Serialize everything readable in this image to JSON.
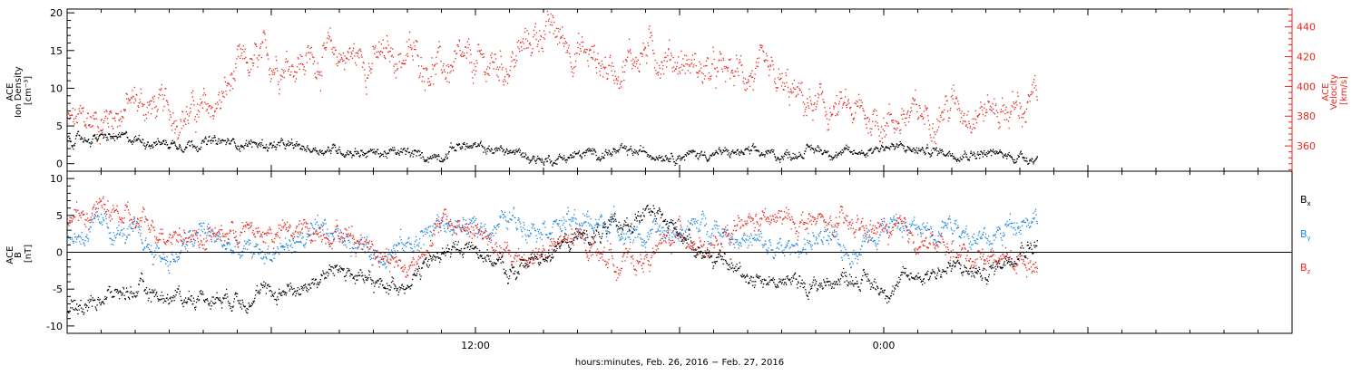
{
  "chart_data": [
    {
      "type": "scatter",
      "panel": "top",
      "left_axis": {
        "label_lines": [
          "ACE",
          "Ion Density",
          "[cm⁻³]"
        ],
        "ylim": [
          -1,
          20.5
        ],
        "ticks": [
          0,
          5,
          10,
          15,
          20
        ],
        "color": "#000000"
      },
      "right_axis": {
        "label_lines": [
          "ACE",
          "Velocity",
          "[km/s]"
        ],
        "ylim": [
          343,
          452
        ],
        "ticks": [
          360,
          380,
          400,
          420,
          440
        ],
        "color": "#e8251c"
      },
      "x_hours_range": [
        0,
        36
      ],
      "data_end_hour": 28.5,
      "series": [
        {
          "name": "",
          "axis": "left",
          "color": "#000000",
          "points": [
            [
              0,
              3.1
            ],
            [
              1,
              3.5
            ],
            [
              2,
              3.3
            ],
            [
              3,
              2.7
            ],
            [
              4,
              2.9
            ],
            [
              5,
              2.8
            ],
            [
              6,
              2.5
            ],
            [
              7,
              2.1
            ],
            [
              8,
              1.9
            ],
            [
              9,
              1.5
            ],
            [
              10,
              1.4
            ],
            [
              10.5,
              1.0
            ],
            [
              11,
              1.2
            ],
            [
              11.5,
              2.6
            ],
            [
              12,
              2.1
            ],
            [
              13,
              1.7
            ],
            [
              14,
              0.5
            ],
            [
              15,
              1.2
            ],
            [
              16,
              1.6
            ],
            [
              17,
              1.5
            ],
            [
              18,
              1.2
            ],
            [
              19,
              1.4
            ],
            [
              20,
              1.5
            ],
            [
              21,
              1.1
            ],
            [
              22,
              2.0
            ],
            [
              23,
              1.3
            ],
            [
              24,
              2.4
            ],
            [
              25,
              1.8
            ],
            [
              26,
              1.6
            ],
            [
              27,
              1.4
            ],
            [
              28,
              1.0
            ],
            [
              28.5,
              0.9
            ]
          ]
        },
        {
          "name": "",
          "axis": "right",
          "color": "#e8251c",
          "points": [
            [
              0,
              375
            ],
            [
              1,
              378
            ],
            [
              2,
              390
            ],
            [
              3,
              383
            ],
            [
              4,
              382
            ],
            [
              4.5,
              390
            ],
            [
              5,
              410
            ],
            [
              6,
              418
            ],
            [
              7,
              418
            ],
            [
              8,
              422
            ],
            [
              9,
              418
            ],
            [
              10,
              422
            ],
            [
              11,
              412
            ],
            [
              12,
              413
            ],
            [
              13,
              416
            ],
            [
              14,
              440
            ],
            [
              15,
              425
            ],
            [
              16,
              412
            ],
            [
              17,
              425
            ],
            [
              18,
              418
            ],
            [
              19,
              408
            ],
            [
              20,
              410
            ],
            [
              21,
              398
            ],
            [
              22,
              385
            ],
            [
              23,
              382
            ],
            [
              24,
              378
            ],
            [
              25,
              380
            ],
            [
              26,
              388
            ],
            [
              27,
              386
            ],
            [
              28,
              385
            ],
            [
              28.5,
              392
            ]
          ]
        }
      ]
    },
    {
      "type": "scatter",
      "panel": "bottom",
      "left_axis": {
        "label_lines": [
          "ACE",
          "B",
          "[nT]"
        ],
        "ylim": [
          -11,
          11
        ],
        "ticks": [
          -10,
          -5,
          0,
          5,
          10
        ],
        "color": "#000000"
      },
      "zero_line": true,
      "x_hours_range": [
        0,
        36
      ],
      "data_end_hour": 28.5,
      "series": [
        {
          "name": "B",
          "subscript": "x",
          "color": "#000000",
          "points": [
            [
              0,
              -8
            ],
            [
              1,
              -6
            ],
            [
              2,
              -5
            ],
            [
              3,
              -6
            ],
            [
              4,
              -6
            ],
            [
              5,
              -6
            ],
            [
              6,
              -5.5
            ],
            [
              7,
              -4.5
            ],
            [
              8,
              -2
            ],
            [
              9,
              -4.5
            ],
            [
              10,
              -4
            ],
            [
              11,
              0
            ],
            [
              12,
              1
            ],
            [
              13,
              -3
            ],
            [
              14,
              0
            ],
            [
              15,
              2
            ],
            [
              16,
              3
            ],
            [
              17,
              5.5
            ],
            [
              18,
              3
            ],
            [
              19,
              -1
            ],
            [
              20,
              -3
            ],
            [
              21,
              -4
            ],
            [
              22,
              -4.5
            ],
            [
              23,
              -3
            ],
            [
              24,
              -5
            ],
            [
              25,
              -3
            ],
            [
              26,
              -2
            ],
            [
              27,
              -3
            ],
            [
              28,
              1
            ],
            [
              28.5,
              1.2
            ]
          ]
        },
        {
          "name": "B",
          "subscript": "y",
          "color": "#1f87e0",
          "points": [
            [
              0,
              2
            ],
            [
              1,
              3.5
            ],
            [
              2,
              2
            ],
            [
              3,
              -1
            ],
            [
              4,
              3
            ],
            [
              5,
              0
            ],
            [
              6,
              0
            ],
            [
              7,
              2
            ],
            [
              8,
              2.5
            ],
            [
              9,
              0
            ],
            [
              10,
              1
            ],
            [
              11,
              4
            ],
            [
              12,
              3
            ],
            [
              13,
              4.5
            ],
            [
              14,
              4
            ],
            [
              15,
              4
            ],
            [
              16,
              4
            ],
            [
              17,
              2
            ],
            [
              18,
              3
            ],
            [
              19,
              4
            ],
            [
              20,
              1.5
            ],
            [
              21,
              0
            ],
            [
              22,
              2
            ],
            [
              23,
              0
            ],
            [
              24,
              4
            ],
            [
              25,
              3
            ],
            [
              26,
              4.5
            ],
            [
              27,
              1
            ],
            [
              28,
              5
            ],
            [
              28.5,
              5
            ]
          ]
        },
        {
          "name": "B",
          "subscript": "z",
          "color": "#e8251c",
          "points": [
            [
              0,
              4
            ],
            [
              1,
              6
            ],
            [
              2,
              4
            ],
            [
              3,
              3
            ],
            [
              4,
              2
            ],
            [
              5,
              3
            ],
            [
              6,
              2.5
            ],
            [
              7,
              3
            ],
            [
              8,
              3
            ],
            [
              9,
              1
            ],
            [
              10,
              -2.5
            ],
            [
              11,
              4
            ],
            [
              12,
              3
            ],
            [
              13,
              -1
            ],
            [
              14,
              0
            ],
            [
              15,
              2
            ],
            [
              16,
              -1
            ],
            [
              17,
              -1
            ],
            [
              18,
              3
            ],
            [
              19,
              0
            ],
            [
              20,
              4
            ],
            [
              21,
              4.5
            ],
            [
              22,
              4
            ],
            [
              23,
              3.5
            ],
            [
              24,
              3
            ],
            [
              25,
              2
            ],
            [
              26,
              0
            ],
            [
              27,
              -0.5
            ],
            [
              28,
              -1
            ],
            [
              28.5,
              -1
            ]
          ]
        }
      ]
    }
  ],
  "x_axis": {
    "tick_labels": [
      {
        "hour": 12,
        "label": "12:00"
      },
      {
        "hour": 24,
        "label": "0:00"
      }
    ],
    "label": "hours:minutes, Feb. 26, 2016 − Feb. 27, 2016"
  }
}
